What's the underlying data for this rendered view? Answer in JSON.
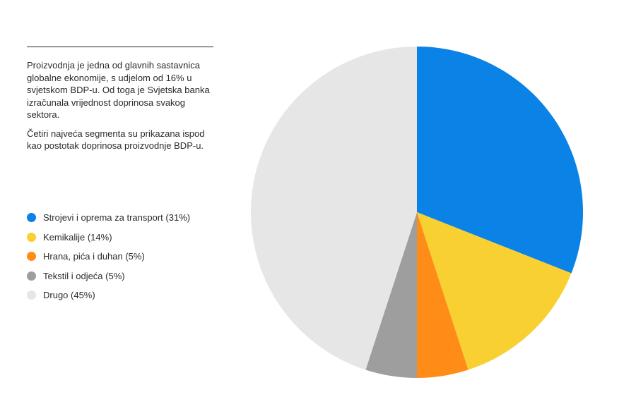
{
  "intro": {
    "paragraph1": "Proizvodnja je jedna od glavnih sastavnica globalne ekonomije, s udjelom od 16% u svjetskom BDP-u. Od toga je Svjetska banka izračunala vrijednost doprinosa svakog sektora.",
    "paragraph2": "Četiri najveća segmenta su prikazana ispod kao postotak doprinosa proizvodnje BDP-u."
  },
  "chart_data": {
    "type": "pie",
    "title": "",
    "unit": "%",
    "start": "12 o'clock",
    "direction": "clockwise",
    "legend_position": "left",
    "slices": [
      {
        "label": "Strojevi i oprema za transport (31%)",
        "value": 31,
        "color": "#0a82e6"
      },
      {
        "label": "Kemikalije (14%)",
        "value": 14,
        "color": "#f8d032"
      },
      {
        "label": "Hrana, pića i duhan (5%)",
        "value": 5,
        "color": "#ff8c17"
      },
      {
        "label": "Tekstil i odjeća (5%)",
        "value": 5,
        "color": "#9e9e9e"
      },
      {
        "label": "Drugo (45%)",
        "value": 45,
        "color": "#e6e6e6"
      }
    ]
  }
}
